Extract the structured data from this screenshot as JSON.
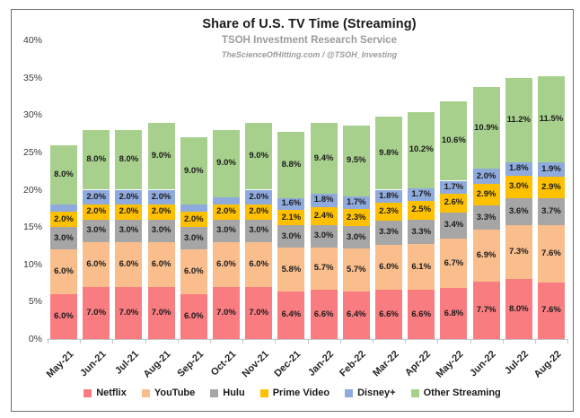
{
  "header": {
    "title": "Share of U.S. TV Time (Streaming)",
    "subtitle": "TSOH Investment Research Service",
    "tagline": "TheScienceOfHitting.com / @TSOH_Investing"
  },
  "chart_data": {
    "type": "bar",
    "stacked": true,
    "title": "Share of U.S. TV Time (Streaming)",
    "categories": [
      "May-21",
      "Jun-21",
      "Jul-21",
      "Aug-21",
      "Sep-21",
      "Oct-21",
      "Nov-21",
      "Dec-21",
      "Jan-22",
      "Feb-22",
      "Mar-22",
      "Apr-22",
      "May-22",
      "Jun-22",
      "Jul-22",
      "Aug-22"
    ],
    "series": [
      {
        "name": "Netflix",
        "color": "#F87C80",
        "values": [
          6.0,
          7.0,
          7.0,
          7.0,
          6.0,
          7.0,
          7.0,
          6.4,
          6.6,
          6.4,
          6.6,
          6.6,
          6.8,
          7.7,
          8.0,
          7.6
        ]
      },
      {
        "name": "YouTube",
        "color": "#FABE8D",
        "values": [
          6.0,
          6.0,
          6.0,
          6.0,
          6.0,
          6.0,
          6.0,
          5.8,
          5.7,
          5.7,
          6.0,
          6.1,
          6.7,
          6.9,
          7.3,
          7.6
        ]
      },
      {
        "name": "Hulu",
        "color": "#A6A6A6",
        "values": [
          3.0,
          3.0,
          3.0,
          3.0,
          3.0,
          3.0,
          3.0,
          3.0,
          3.0,
          3.0,
          3.3,
          3.3,
          3.4,
          3.3,
          3.6,
          3.7
        ]
      },
      {
        "name": "Prime Video",
        "color": "#FFC000",
        "values": [
          2.0,
          2.0,
          2.0,
          2.0,
          2.0,
          2.0,
          2.0,
          2.1,
          2.4,
          2.3,
          2.3,
          2.5,
          2.6,
          2.9,
          3.0,
          2.9
        ]
      },
      {
        "name": "Disney+",
        "color": "#8FAADC",
        "values": [
          1.0,
          2.0,
          2.0,
          2.0,
          1.0,
          1.0,
          2.0,
          1.6,
          1.8,
          1.7,
          1.8,
          1.7,
          1.7,
          2.0,
          1.8,
          1.9
        ]
      },
      {
        "name": "Other Streaming",
        "color": "#A8D08D",
        "values": [
          8.0,
          8.0,
          8.0,
          9.0,
          9.0,
          9.0,
          9.0,
          8.8,
          9.4,
          9.5,
          9.8,
          10.2,
          10.6,
          10.9,
          11.2,
          11.5
        ]
      }
    ],
    "yticks": [
      {
        "value": 0,
        "label": "0%"
      },
      {
        "value": 5,
        "label": "5%"
      },
      {
        "value": 10,
        "label": "10%"
      },
      {
        "value": 15,
        "label": "15%"
      },
      {
        "value": 20,
        "label": "20%"
      },
      {
        "value": 25,
        "label": "25%"
      },
      {
        "value": 30,
        "label": "30%"
      },
      {
        "value": 35,
        "label": "35%"
      },
      {
        "value": 40,
        "label": "40%"
      }
    ],
    "ylim": [
      0,
      40
    ],
    "grid": false,
    "legend_position": "bottom",
    "data_label_format": "one-decimal-percent",
    "note": "segments shorter than ~1.5% show no data label (May-21, Sep-21, Oct-21 Disney+)"
  }
}
